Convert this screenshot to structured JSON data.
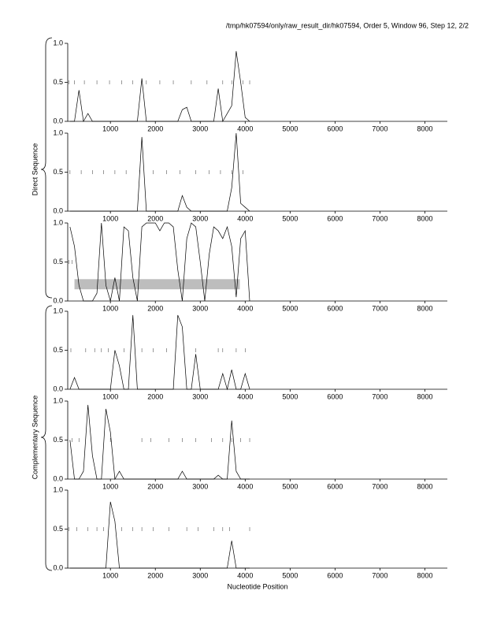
{
  "header": "/tmp/hk07594/only/raw_result_dir/hk07594, Order 5, Window 96, Step 12, 2/2",
  "axis_groups": [
    "Direct Sequence",
    "Complementary Sequence"
  ],
  "chart_data": [
    {
      "type": "line",
      "color": "#000000",
      "xlim": [
        50,
        8500
      ],
      "ylim": [
        0,
        1
      ],
      "xticks": [
        1000,
        2000,
        3000,
        4000,
        5000,
        6000,
        7000,
        8000
      ],
      "yticks": [
        {
          "value": 0,
          "label": "0.0"
        },
        {
          "value": 0.5,
          "label": "0.5"
        },
        {
          "value": 1,
          "label": "1.0"
        }
      ],
      "x": [
        100,
        200,
        300,
        400,
        500,
        600,
        700,
        800,
        900,
        1000,
        1100,
        1200,
        1300,
        1400,
        1500,
        1600,
        1700,
        1800,
        1900,
        2000,
        2100,
        2200,
        2300,
        2400,
        2500,
        2600,
        2700,
        2800,
        2900,
        3000,
        3100,
        3200,
        3300,
        3400,
        3500,
        3600,
        3700,
        3800,
        3900,
        4000,
        4100
      ],
      "values": [
        0,
        0,
        0.4,
        0,
        0.1,
        0,
        0,
        0,
        0,
        0,
        0,
        0,
        0,
        0,
        0,
        0,
        0.55,
        0,
        0,
        0,
        0,
        0,
        0,
        0,
        0,
        0.15,
        0.18,
        0,
        0,
        0,
        0,
        0,
        0,
        0.42,
        0,
        0.1,
        0.2,
        0.9,
        0.5,
        0.05,
        0
      ],
      "markers": [
        80,
        200,
        420,
        700,
        980,
        1250,
        1500,
        1800,
        2100,
        2400,
        2800,
        3150,
        3500,
        3700,
        3950,
        4100
      ]
    },
    {
      "type": "line",
      "color": "#000000",
      "xlim": [
        50,
        8500
      ],
      "ylim": [
        0,
        1
      ],
      "xticks": [
        1000,
        2000,
        3000,
        4000,
        5000,
        6000,
        7000,
        8000
      ],
      "yticks": [
        {
          "value": 0,
          "label": "0.0"
        },
        {
          "value": 0.5,
          "label": "0.5"
        },
        {
          "value": 1,
          "label": "1.0"
        }
      ],
      "x": [
        100,
        200,
        300,
        400,
        500,
        600,
        700,
        800,
        900,
        1000,
        1100,
        1200,
        1300,
        1400,
        1500,
        1600,
        1700,
        1800,
        1900,
        2000,
        2100,
        2200,
        2300,
        2400,
        2500,
        2600,
        2700,
        2800,
        2900,
        3000,
        3100,
        3200,
        3300,
        3400,
        3500,
        3600,
        3700,
        3800,
        3900,
        4000,
        4100
      ],
      "values": [
        0,
        0,
        0,
        0,
        0,
        0,
        0,
        0,
        0,
        0,
        0,
        0,
        0,
        0,
        0,
        0,
        0.95,
        0,
        0,
        0,
        0,
        0,
        0,
        0,
        0,
        0.2,
        0.05,
        0,
        0,
        0,
        0,
        0,
        0,
        0,
        0,
        0,
        0.3,
        1,
        0.1,
        0.05,
        0
      ],
      "markers": [
        100,
        350,
        600,
        850,
        1100,
        1350,
        1650,
        1950,
        2250,
        2550,
        2900,
        3200,
        3450,
        3700,
        3950
      ]
    },
    {
      "type": "line",
      "color": "#000000",
      "xlim": [
        50,
        8500
      ],
      "ylim": [
        0,
        1
      ],
      "xticks": [
        1000,
        2000,
        3000,
        4000,
        5000,
        6000,
        7000,
        8000
      ],
      "yticks": [
        {
          "value": 0,
          "label": "0.0"
        },
        {
          "value": 0.5,
          "label": "0.5"
        },
        {
          "value": 1,
          "label": "1.0"
        }
      ],
      "band": {
        "x": [
          200,
          3880
        ],
        "y": [
          0.15,
          0.28
        ]
      },
      "x": [
        100,
        200,
        300,
        400,
        500,
        600,
        700,
        800,
        900,
        1000,
        1100,
        1200,
        1300,
        1400,
        1500,
        1600,
        1700,
        1800,
        1900,
        2000,
        2100,
        2200,
        2300,
        2400,
        2500,
        2600,
        2700,
        2800,
        2900,
        3000,
        3100,
        3200,
        3300,
        3400,
        3500,
        3600,
        3700,
        3800,
        3900,
        4000,
        4100
      ],
      "values": [
        0.95,
        0.7,
        0.2,
        0,
        0,
        0,
        0.1,
        1,
        0.2,
        0,
        0.3,
        0,
        0.95,
        0.9,
        0.3,
        0,
        0.95,
        1,
        1,
        1,
        0.9,
        1,
        1,
        0.95,
        0.4,
        0,
        0.8,
        1,
        0.95,
        0.5,
        0,
        0.6,
        0.95,
        0.9,
        0.8,
        0.95,
        0.7,
        0.05,
        0.8,
        0.9,
        0
      ],
      "markers": [
        80,
        150
      ]
    },
    {
      "type": "line",
      "color": "#000000",
      "xlim": [
        50,
        8500
      ],
      "ylim": [
        0,
        1
      ],
      "xticks": [
        1000,
        2000,
        3000,
        4000,
        5000,
        6000,
        7000,
        8000
      ],
      "yticks": [
        {
          "value": 0,
          "label": "0.0"
        },
        {
          "value": 0.5,
          "label": "0.5"
        },
        {
          "value": 1,
          "label": "1.0"
        }
      ],
      "x": [
        100,
        200,
        300,
        400,
        500,
        600,
        700,
        800,
        900,
        1000,
        1100,
        1200,
        1300,
        1400,
        1500,
        1600,
        1700,
        1800,
        1900,
        2000,
        2100,
        2200,
        2300,
        2400,
        2500,
        2600,
        2700,
        2800,
        2900,
        3000,
        3100,
        3200,
        3300,
        3400,
        3500,
        3600,
        3700,
        3800,
        3900,
        4000,
        4100
      ],
      "values": [
        0,
        0.15,
        0,
        0,
        0,
        0,
        0,
        0,
        0,
        0,
        0.5,
        0.3,
        0,
        0,
        0.95,
        0,
        0,
        0,
        0,
        0,
        0,
        0,
        0,
        0,
        0.95,
        0.8,
        0,
        0,
        0.45,
        0,
        0,
        0,
        0,
        0,
        0.2,
        0,
        0.25,
        0,
        0,
        0.2,
        0
      ],
      "markers": [
        120,
        450,
        650,
        800,
        950,
        1300,
        1700,
        1950,
        2250,
        2900,
        3400,
        3500,
        3800,
        4000
      ]
    },
    {
      "type": "line",
      "color": "#000000",
      "xlim": [
        50,
        8500
      ],
      "ylim": [
        0,
        1
      ],
      "xticks": [
        1000,
        2000,
        3000,
        4000,
        5000,
        6000,
        7000,
        8000
      ],
      "yticks": [
        {
          "value": 0,
          "label": "0.0"
        },
        {
          "value": 0.5,
          "label": "0.5"
        },
        {
          "value": 1,
          "label": "1.0"
        }
      ],
      "x": [
        100,
        200,
        300,
        400,
        500,
        600,
        700,
        800,
        900,
        1000,
        1100,
        1200,
        1300,
        1400,
        1500,
        1600,
        1700,
        1800,
        1900,
        2000,
        2100,
        2200,
        2300,
        2400,
        2500,
        2600,
        2700,
        2800,
        2900,
        3000,
        3100,
        3200,
        3300,
        3400,
        3500,
        3600,
        3700,
        3800,
        3900,
        4000,
        4100
      ],
      "values": [
        0.5,
        0,
        0,
        0.1,
        0.95,
        0.3,
        0,
        0,
        0.9,
        0.6,
        0,
        0.1,
        0,
        0,
        0,
        0,
        0,
        0,
        0,
        0,
        0,
        0,
        0,
        0,
        0,
        0.1,
        0,
        0,
        0,
        0,
        0,
        0,
        0,
        0.05,
        0,
        0,
        0.75,
        0.1,
        0,
        0,
        0
      ],
      "markers": [
        150,
        300,
        1000,
        1700,
        1900,
        2300,
        2600,
        2900,
        3250,
        3500,
        3700,
        3900,
        4100
      ]
    },
    {
      "type": "line",
      "color": "#000000",
      "xlim": [
        50,
        8500
      ],
      "ylim": [
        0,
        1
      ],
      "xticks": [
        1000,
        2000,
        3000,
        4000,
        5000,
        6000,
        7000,
        8000
      ],
      "yticks": [
        {
          "value": 0,
          "label": "0.0"
        },
        {
          "value": 0.5,
          "label": "0.5"
        },
        {
          "value": 1,
          "label": "1.0"
        }
      ],
      "x_label": "Nucleotide Position",
      "x": [
        100,
        200,
        300,
        400,
        500,
        600,
        700,
        800,
        900,
        1000,
        1100,
        1200,
        1300,
        1400,
        1500,
        1600,
        1700,
        1800,
        1900,
        2000,
        2100,
        2200,
        2300,
        2400,
        2500,
        2600,
        2700,
        2800,
        2900,
        3000,
        3100,
        3200,
        3300,
        3400,
        3500,
        3600,
        3700,
        3800,
        3900,
        4000,
        4100
      ],
      "values": [
        0,
        0,
        0,
        0,
        0,
        0,
        0,
        0,
        0,
        0.85,
        0.6,
        0,
        0,
        0,
        0,
        0,
        0,
        0,
        0,
        0,
        0,
        0,
        0,
        0,
        0,
        0,
        0,
        0,
        0,
        0,
        0,
        0,
        0,
        0,
        0,
        0,
        0.35,
        0,
        0,
        0,
        0
      ],
      "markers": [
        80,
        250,
        500,
        700,
        850,
        1250,
        1500,
        1700,
        1950,
        2300,
        2700,
        2950,
        3300,
        3500,
        3650,
        4100
      ]
    }
  ]
}
